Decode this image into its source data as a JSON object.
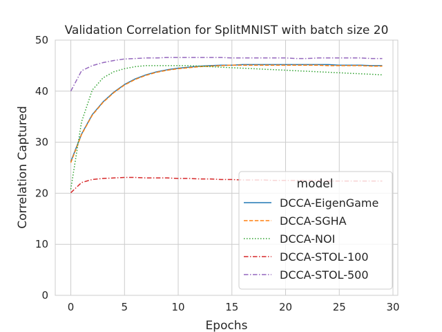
{
  "chart_data": {
    "type": "line",
    "title": "Validation Correlation for SplitMNIST with batch size 20",
    "xlabel": "Epochs",
    "ylabel": "Correlation Captured",
    "xlim": [
      -1.45,
      30.45
    ],
    "ylim": [
      0,
      50
    ],
    "xticks": [
      0,
      5,
      10,
      15,
      20,
      25,
      30
    ],
    "yticks": [
      0,
      10,
      20,
      30,
      40,
      50
    ],
    "grid": true,
    "legend_title": "model",
    "legend_position": "lower-right",
    "x": [
      0,
      1,
      2,
      3,
      4,
      5,
      6,
      7,
      8,
      9,
      10,
      11,
      12,
      13,
      14,
      15,
      16,
      17,
      18,
      19,
      20,
      21,
      22,
      23,
      24,
      25,
      26,
      27,
      28,
      29
    ],
    "series": [
      {
        "name": "DCCA-EigenGame",
        "color": "#1f77b4",
        "dash": "solid",
        "values": [
          26.2,
          31.6,
          35.4,
          37.9,
          39.8,
          41.3,
          42.4,
          43.2,
          43.8,
          44.2,
          44.5,
          44.7,
          44.9,
          45.0,
          45.1,
          45.1,
          45.2,
          45.2,
          45.2,
          45.2,
          45.2,
          45.2,
          45.2,
          45.2,
          45.2,
          45.1,
          45.1,
          45.1,
          45.0,
          45.0
        ]
      },
      {
        "name": "DCCA-SGHA",
        "color": "#ff7f0e",
        "dash": "dashed",
        "values": [
          26.0,
          31.5,
          35.3,
          37.8,
          39.7,
          41.2,
          42.3,
          43.1,
          43.7,
          44.1,
          44.4,
          44.6,
          44.8,
          44.9,
          45.0,
          45.1,
          45.1,
          45.1,
          45.1,
          45.1,
          45.1,
          45.1,
          45.1,
          45.1,
          45.0,
          45.0,
          45.0,
          45.0,
          44.9,
          44.9
        ]
      },
      {
        "name": "DCCA-NOI",
        "color": "#2ca02c",
        "dash": "dotted",
        "values": [
          20.8,
          34.0,
          40.2,
          42.6,
          43.8,
          44.4,
          44.8,
          45.0,
          45.0,
          45.0,
          45.0,
          45.0,
          44.9,
          44.8,
          44.7,
          44.6,
          44.5,
          44.4,
          44.3,
          44.2,
          44.1,
          44.0,
          43.9,
          43.8,
          43.7,
          43.6,
          43.5,
          43.4,
          43.3,
          43.2
        ]
      },
      {
        "name": "DCCA-STOL-100",
        "color": "#d62728",
        "dash": "dashdot",
        "values": [
          20.1,
          22.1,
          22.7,
          22.9,
          23.0,
          23.1,
          23.1,
          23.0,
          23.0,
          23.0,
          22.9,
          22.9,
          22.8,
          22.8,
          22.7,
          22.7,
          22.6,
          22.6,
          22.6,
          22.5,
          22.5,
          22.5,
          22.5,
          22.5,
          22.4,
          22.4,
          22.4,
          22.4,
          22.4,
          22.4
        ]
      },
      {
        "name": "DCCA-STOL-500",
        "color": "#9467bd",
        "dash": "dashdot",
        "values": [
          40.0,
          44.0,
          45.0,
          45.6,
          46.0,
          46.3,
          46.4,
          46.5,
          46.5,
          46.6,
          46.6,
          46.6,
          46.6,
          46.6,
          46.6,
          46.5,
          46.5,
          46.5,
          46.5,
          46.5,
          46.5,
          46.4,
          46.4,
          46.5,
          46.5,
          46.5,
          46.5,
          46.5,
          46.4,
          46.4
        ]
      }
    ]
  }
}
